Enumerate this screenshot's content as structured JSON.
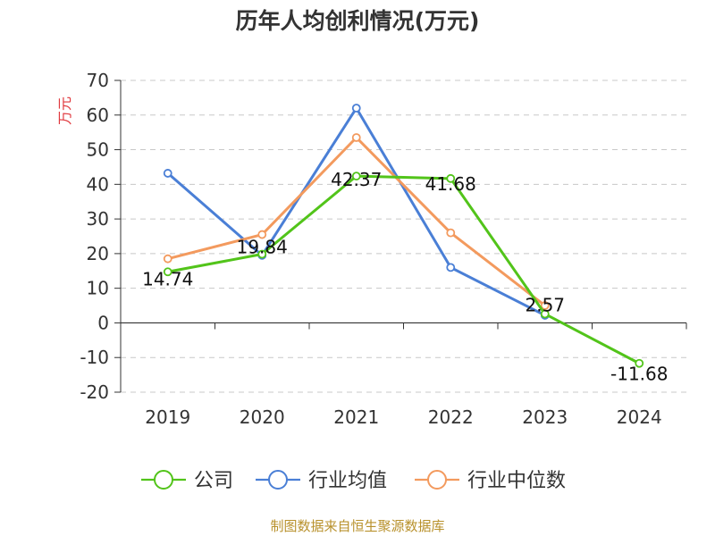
{
  "chart_data": {
    "type": "line",
    "title": "历年人均创利情况(万元)",
    "ylabel": "万元",
    "categories": [
      "2019",
      "2020",
      "2021",
      "2022",
      "2023",
      "2024"
    ],
    "ylim": [
      -20,
      70
    ],
    "yticks": [
      -20,
      -10,
      0,
      10,
      20,
      30,
      40,
      50,
      60,
      70
    ],
    "grid": true,
    "legend_position": "bottom",
    "series": [
      {
        "name": "公司",
        "color": "#52c41a",
        "values": [
          14.74,
          19.84,
          42.37,
          41.68,
          2.57,
          -11.68
        ],
        "labels": [
          "14.74",
          "19.84",
          "42.37",
          "41.68",
          "2.57",
          "-11.68"
        ]
      },
      {
        "name": "行业均值",
        "color": "#4a7fd6",
        "values": [
          43.2,
          19.5,
          62.0,
          16.0,
          2.2,
          null
        ]
      },
      {
        "name": "行业中位数",
        "color": "#f39a5e",
        "values": [
          18.5,
          25.5,
          53.5,
          26.0,
          5.0,
          null
        ]
      }
    ],
    "source": "制图数据来自恒生聚源数据库"
  }
}
